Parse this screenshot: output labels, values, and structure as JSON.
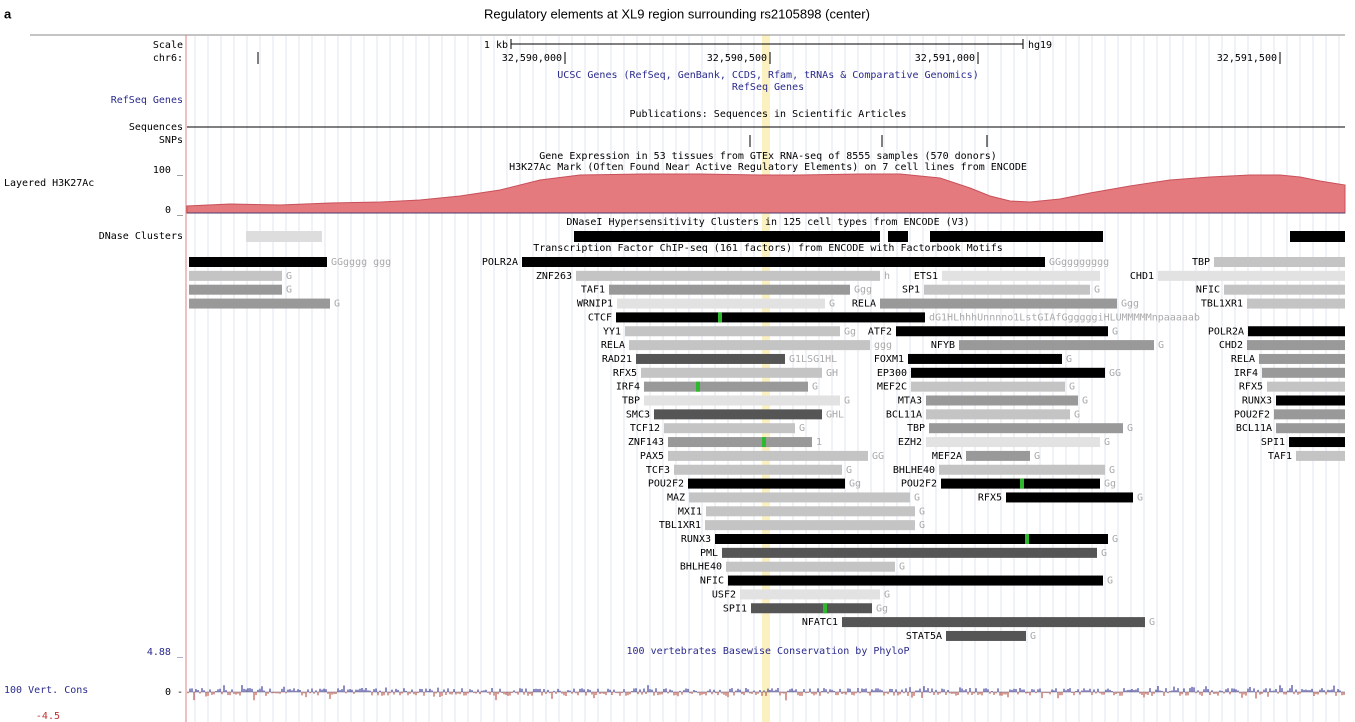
{
  "figure": {
    "panel_label": "a",
    "title": "Regulatory elements at XL9 region surrounding rs2105898 (center)"
  },
  "side_labels": {
    "scale": "Scale",
    "chrom": "chr6:",
    "refseq": "RefSeq Genes",
    "sequences": "Sequences",
    "snps": "SNPs",
    "h3k_max": "100 _",
    "h3k": "Layered H3K27Ac",
    "h3k_min": "0 _",
    "dnase": "DNase Clusters",
    "cons_max": "4.88 _",
    "cons": "100 Vert. Cons",
    "cons_zero": "0 -",
    "cons_min": "-4.5"
  },
  "ruler": {
    "scale_label": "1 kb",
    "assembly": "hg19",
    "positions": [
      "32,590,000",
      "32,590,500",
      "32,591,000",
      "32,591,500"
    ]
  },
  "track_titles": {
    "ucsc_genes": "UCSC Genes (RefSeq, GenBank, CCDS, Rfam, tRNAs & Comparative Genomics)",
    "refseq": "RefSeq Genes",
    "publications": "Publications: Sequences in Scientific Articles",
    "gtex": "Gene Expression in 53 tissues from GTEx RNA-seq of 8555 samples (570 donors)",
    "h3k27ac": "H3K27Ac Mark (Often Found Near Active Regulatory Elements) on 7 cell lines from ENCODE",
    "dnase": "DNaseI Hypersensitivity Clusters in 125 cell types from ENCODE (V3)",
    "tfbs": "Transcription Factor ChIP-seq (161 factors) from ENCODE with Factorbook Motifs",
    "conservation": "100 vertebrates Basewise Conservation by PhyloP"
  },
  "tf_items": [
    {
      "name": "POLR2A",
      "suffix": "GGgggg ggg"
    },
    {
      "name": "TAF1",
      "suffix": "G"
    },
    {
      "name": "POU2F2",
      "suffix": "G"
    },
    {
      "name": "TBP",
      "suffix": "G"
    },
    {
      "name": "POLR2A",
      "suffix": "GGgggggggg"
    },
    {
      "name": "TBP"
    },
    {
      "name": "ZNF263",
      "suffix": "h"
    },
    {
      "name": "ETS1"
    },
    {
      "name": "CHD1"
    },
    {
      "name": "TAF1",
      "suffix": "Ggg"
    },
    {
      "name": "SP1",
      "suffix": "G"
    },
    {
      "name": "NFIC"
    },
    {
      "name": "WRNIP1",
      "suffix": "G"
    },
    {
      "name": "RELA",
      "suffix": "Ggg"
    },
    {
      "name": "TBL1XR1"
    },
    {
      "name": "CTCF",
      "suffix": "dG1HLhhhUnnnno1LstGIAfGgggggiHLUMMMMMnpaaaaab"
    },
    {
      "name": "YY1",
      "suffix": "Gg"
    },
    {
      "name": "ATF2",
      "suffix": "G"
    },
    {
      "name": "POLR2A"
    },
    {
      "name": "RELA",
      "suffix": "ggg"
    },
    {
      "name": "NFYB",
      "suffix": "G"
    },
    {
      "name": "CHD2"
    },
    {
      "name": "RAD21",
      "suffix": "G1LSG1HL"
    },
    {
      "name": "FOXM1",
      "suffix": "G"
    },
    {
      "name": "RELA"
    },
    {
      "name": "RFX5",
      "suffix": "GH"
    },
    {
      "name": "EP300",
      "suffix": "GG"
    },
    {
      "name": "IRF4"
    },
    {
      "name": "IRF4",
      "suffix": "G"
    },
    {
      "name": "MEF2C",
      "suffix": "G"
    },
    {
      "name": "RFX5"
    },
    {
      "name": "TBP",
      "suffix": "G"
    },
    {
      "name": "MTA3",
      "suffix": "G"
    },
    {
      "name": "RUNX3"
    },
    {
      "name": "SMC3",
      "suffix": "GHL"
    },
    {
      "name": "BCL11A",
      "suffix": "G"
    },
    {
      "name": "POU2F2"
    },
    {
      "name": "TCF12",
      "suffix": "G"
    },
    {
      "name": "TBP",
      "suffix": "G"
    },
    {
      "name": "BCL11A"
    },
    {
      "name": "ZNF143",
      "suffix": "1"
    },
    {
      "name": "EZH2",
      "suffix": "G"
    },
    {
      "name": "SPI1"
    },
    {
      "name": "PAX5",
      "suffix": "GG"
    },
    {
      "name": "MEF2A",
      "suffix": "G"
    },
    {
      "name": "TAF1"
    },
    {
      "name": "TCF3",
      "suffix": "G"
    },
    {
      "name": "BHLHE40",
      "suffix": "G"
    },
    {
      "name": "POU2F2",
      "suffix": "Gg"
    },
    {
      "name": "POU2F2",
      "suffix": "Gg"
    },
    {
      "name": "MAZ",
      "suffix": "G"
    },
    {
      "name": "RFX5",
      "suffix": "G"
    },
    {
      "name": "MXI1",
      "suffix": "G"
    },
    {
      "name": "TBL1XR1",
      "suffix": "G"
    },
    {
      "name": "RUNX3",
      "suffix": "G"
    },
    {
      "name": "PML",
      "suffix": "G"
    },
    {
      "name": "BHLHE40",
      "suffix": "G"
    },
    {
      "name": "NFIC",
      "suffix": "G"
    },
    {
      "name": "USF2",
      "suffix": "G"
    },
    {
      "name": "SPI1",
      "suffix": "Gg"
    },
    {
      "name": "NFATC1",
      "suffix": "G"
    },
    {
      "name": "STAT5A",
      "suffix": "G"
    }
  ]
}
